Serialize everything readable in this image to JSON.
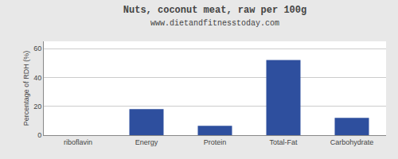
{
  "chart_data": {
    "type": "bar",
    "title": "Nuts, coconut meat, raw per 100g",
    "subtitle": "www.dietandfitnesstoday.com",
    "categories": [
      "riboflavin",
      "Energy",
      "Protein",
      "Total-Fat",
      "Carbohydrate"
    ],
    "values": [
      0,
      18,
      6.5,
      52,
      12
    ],
    "color": "#2e4f9e",
    "ylabel": "Percentage of RDH (%)",
    "ylim": [
      0,
      65
    ],
    "yticks": [
      0,
      20,
      40,
      60
    ],
    "grid": true
  }
}
